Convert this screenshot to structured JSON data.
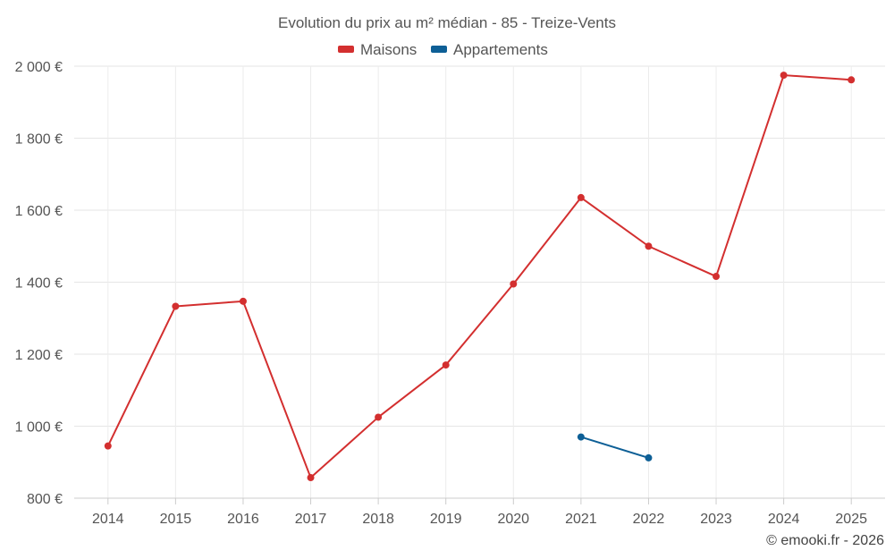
{
  "chart_data": {
    "type": "line",
    "title": "Evolution du prix au m² médian - 85 - Treize-Vents",
    "categories": [
      "2014",
      "2015",
      "2016",
      "2017",
      "2018",
      "2019",
      "2020",
      "2021",
      "2022",
      "2023",
      "2024",
      "2025"
    ],
    "y_ticks": [
      "800 €",
      "1 000 €",
      "1 200 €",
      "1 400 €",
      "1 600 €",
      "1 800 €",
      "2 000 €"
    ],
    "y_tick_values": [
      800,
      1000,
      1200,
      1400,
      1600,
      1800,
      2000
    ],
    "ylim": [
      800,
      2000
    ],
    "grid": true,
    "legend_position": "top-center",
    "series": [
      {
        "name": "Maisons",
        "color": "#d32f2f",
        "values": [
          945,
          1333,
          1347,
          857,
          1025,
          1170,
          1395,
          1635,
          1500,
          1416,
          1975,
          1962
        ]
      },
      {
        "name": "Appartements",
        "color": "#0d5f96",
        "values": [
          null,
          null,
          null,
          null,
          null,
          null,
          null,
          970,
          912,
          null,
          null,
          null
        ]
      }
    ]
  },
  "credit": "© emooki.fr - 2026"
}
